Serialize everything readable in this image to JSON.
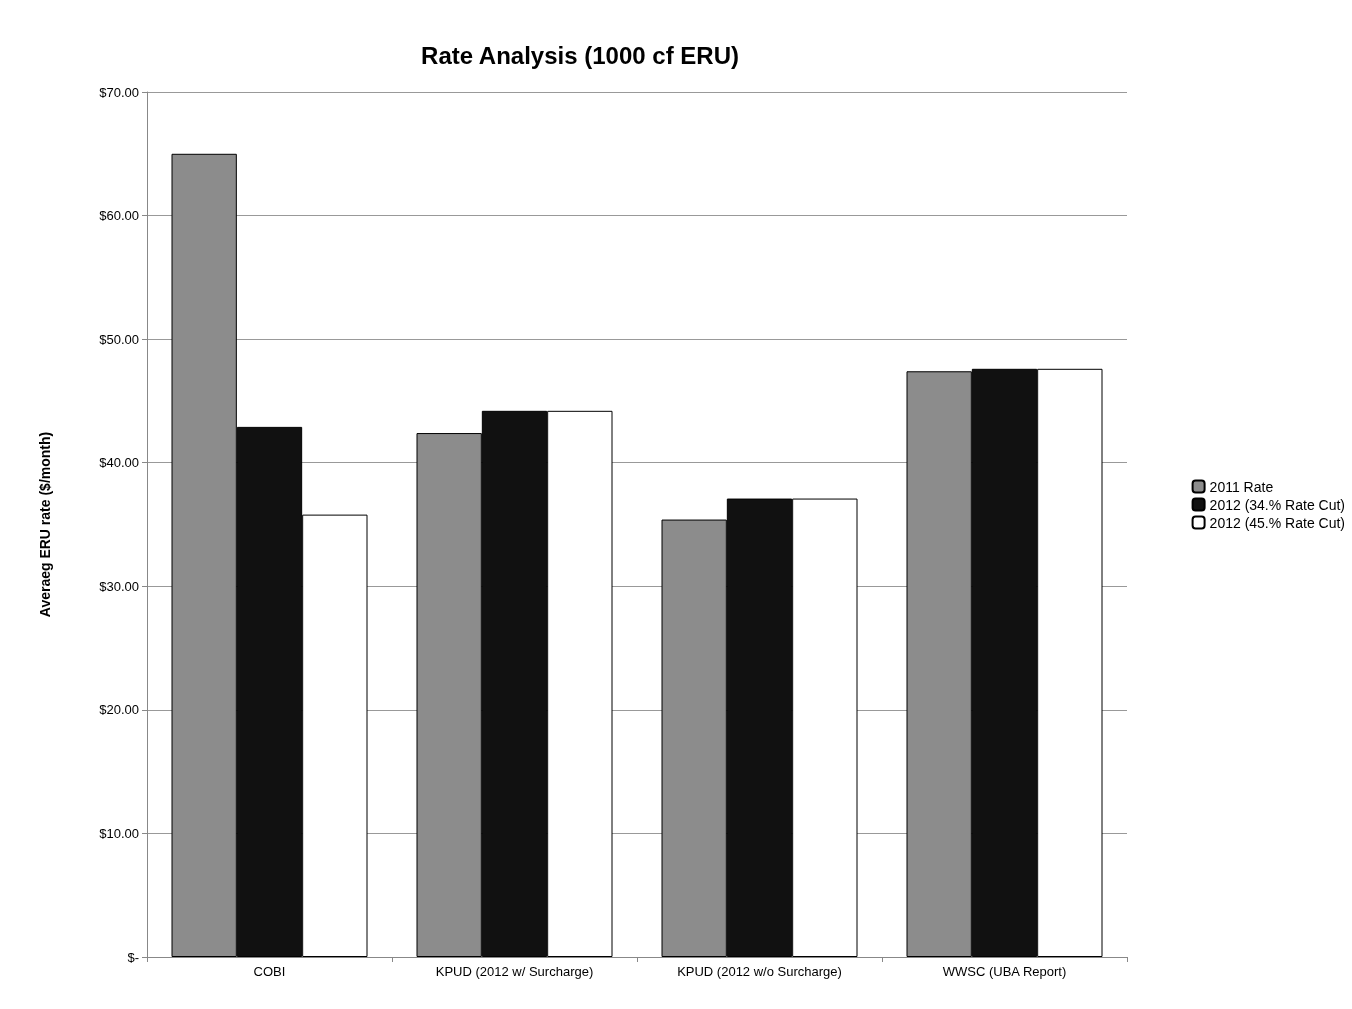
{
  "chart_data": {
    "type": "bar",
    "title": "Rate Analysis (1000 cf ERU)",
    "ylabel": "Averaeg ERU rate ($/month)",
    "categories": [
      "COBI",
      "KPUD (2012 w/ Surcharge)",
      "KPUD (2012 w/o Surcharge)",
      "WWSC (UBA Report)"
    ],
    "series": [
      {
        "name": "2011 Rate",
        "color": "#8c8c8c",
        "values": [
          65.0,
          42.4,
          35.4,
          47.4
        ]
      },
      {
        "name": "2012 (34.% Rate Cut)",
        "color": "#111111",
        "values": [
          42.9,
          44.2,
          37.1,
          47.6
        ]
      },
      {
        "name": "2012 (45.% Rate Cut)",
        "color": "#ffffff",
        "values": [
          35.8,
          44.2,
          37.1,
          47.6
        ]
      }
    ],
    "ylim": [
      0,
      70
    ],
    "yticks": [
      {
        "value": 0,
        "label": "$-"
      },
      {
        "value": 10,
        "label": "$10.00"
      },
      {
        "value": 20,
        "label": "$20.00"
      },
      {
        "value": 30,
        "label": "$30.00"
      },
      {
        "value": 40,
        "label": "$40.00"
      },
      {
        "value": 50,
        "label": "$50.00"
      },
      {
        "value": 60,
        "label": "$60.00"
      },
      {
        "value": 70,
        "label": "$70.00"
      }
    ],
    "grid": "y",
    "legend": "right"
  }
}
